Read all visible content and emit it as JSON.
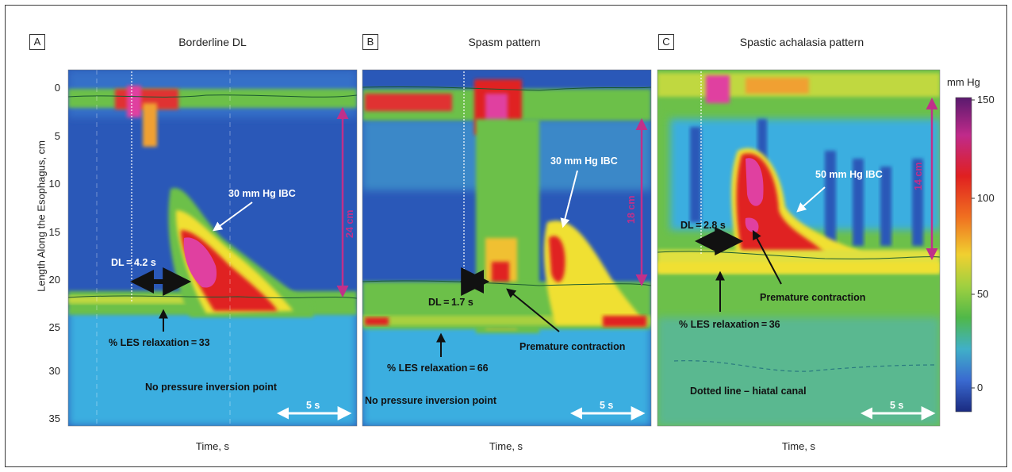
{
  "panels": [
    {
      "letter": "A",
      "title": "Borderline DL",
      "xlabel": "Time, s",
      "annotations": {
        "ibc": "30 mm Hg IBC",
        "dl": "DL = 4.2 s",
        "les": "% LES relaxation = 33",
        "pip": "No pressure inversion point",
        "length": "24 cm",
        "scale": "5 s"
      }
    },
    {
      "letter": "B",
      "title": "Spasm pattern",
      "xlabel": "Time, s",
      "annotations": {
        "ibc": "30 mm Hg IBC",
        "dl": "DL = 1.7 s",
        "les": "% LES relaxation = 66",
        "pip": "No pressure inversion point",
        "premature": "Premature contraction",
        "length": "18 cm",
        "scale": "5 s"
      }
    },
    {
      "letter": "C",
      "title": "Spastic achalasia pattern",
      "xlabel": "Time, s",
      "annotations": {
        "ibc": "50 mm Hg IBC",
        "dl": "DL = 2.8 s",
        "les": "% LES relaxation = 36",
        "premature": "Premature contraction",
        "dotted": "Dotted line – hiatal canal",
        "length": "14 cm",
        "scale": "5 s"
      }
    }
  ],
  "y_axis": {
    "title": "Length Along the Esophagus, cm",
    "ticks": [
      "0",
      "5",
      "10",
      "15",
      "20",
      "25",
      "30",
      "35"
    ]
  },
  "colorbar": {
    "unit": "mm Hg",
    "ticks": [
      "150",
      "100",
      "50",
      "0"
    ]
  },
  "colors": {
    "bg": "#2a58b8",
    "cyan": "#3aaee0",
    "green": "#6cc04a",
    "yellow": "#f0e030",
    "red": "#e02020",
    "magenta": "#e040a0",
    "accent": "#c0308a"
  }
}
